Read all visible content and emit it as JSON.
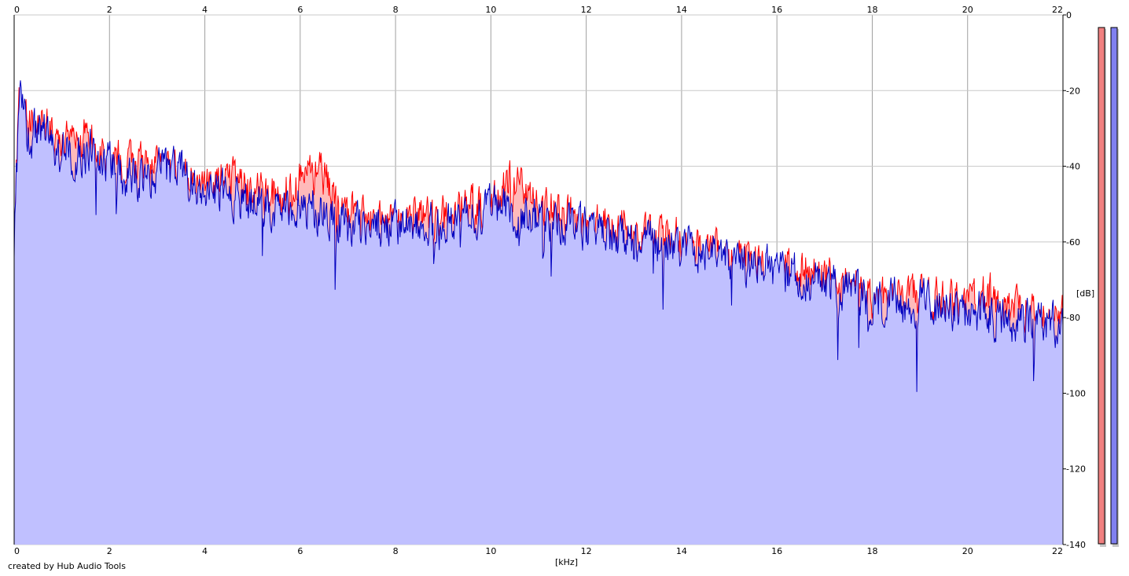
{
  "chart_data": {
    "type": "area",
    "xlabel": "[kHz]",
    "ylabel": "[dB]",
    "xlim": [
      0,
      22
    ],
    "ylim": [
      -140,
      0
    ],
    "x_ticks": [
      "0",
      "2",
      "4",
      "6",
      "8",
      "10",
      "12",
      "14",
      "16",
      "18",
      "20",
      "22"
    ],
    "y_ticks": [
      "0",
      "-20",
      "-40",
      "-60",
      "-80",
      "-100",
      "-120",
      "-140"
    ],
    "grid": true,
    "series": [
      {
        "color": "#ff0000",
        "fill": "#ffbaba",
        "anchors": [
          [
            0,
            -62
          ],
          [
            0.05,
            -38
          ],
          [
            0.1,
            -22
          ],
          [
            0.3,
            -30
          ],
          [
            0.6,
            -28
          ],
          [
            1.0,
            -34
          ],
          [
            1.3,
            -34
          ],
          [
            1.6,
            -32
          ],
          [
            2.0,
            -38
          ],
          [
            2.5,
            -40
          ],
          [
            3.0,
            -40
          ],
          [
            3.5,
            -42
          ],
          [
            4.0,
            -46
          ],
          [
            4.5,
            -44
          ],
          [
            5.0,
            -47
          ],
          [
            5.5,
            -48
          ],
          [
            6.0,
            -44
          ],
          [
            6.5,
            -42
          ],
          [
            7.0,
            -52
          ],
          [
            7.5,
            -56
          ],
          [
            8.0,
            -55
          ],
          [
            9.0,
            -54
          ],
          [
            10.0,
            -50
          ],
          [
            10.4,
            -44
          ],
          [
            11.0,
            -51
          ],
          [
            12.0,
            -54
          ],
          [
            12.5,
            -56
          ],
          [
            13.0,
            -58
          ],
          [
            14.0,
            -60
          ],
          [
            15.0,
            -64
          ],
          [
            16.0,
            -67
          ],
          [
            17.0,
            -68
          ],
          [
            18.0,
            -74
          ],
          [
            19.0,
            -75
          ],
          [
            20.0,
            -77
          ],
          [
            20.5,
            -74
          ],
          [
            21.0,
            -79
          ],
          [
            22.0,
            -80
          ]
        ]
      },
      {
        "color": "#0000c0",
        "fill": "#c0c0ff",
        "anchors": [
          [
            0,
            -60
          ],
          [
            0.05,
            -40
          ],
          [
            0.1,
            -21
          ],
          [
            0.3,
            -32
          ],
          [
            0.6,
            -31
          ],
          [
            1.0,
            -36
          ],
          [
            1.3,
            -37
          ],
          [
            1.6,
            -35
          ],
          [
            2.0,
            -40
          ],
          [
            2.5,
            -43
          ],
          [
            3.0,
            -42
          ],
          [
            3.5,
            -41
          ],
          [
            4.0,
            -48
          ],
          [
            4.5,
            -47
          ],
          [
            5.0,
            -49
          ],
          [
            5.5,
            -50
          ],
          [
            6.0,
            -50
          ],
          [
            6.5,
            -52
          ],
          [
            7.0,
            -56
          ],
          [
            7.5,
            -57
          ],
          [
            8.0,
            -55
          ],
          [
            9.0,
            -55
          ],
          [
            10.0,
            -51
          ],
          [
            10.4,
            -52
          ],
          [
            11.0,
            -54
          ],
          [
            12.0,
            -57
          ],
          [
            12.5,
            -58
          ],
          [
            13.0,
            -60
          ],
          [
            14.0,
            -61
          ],
          [
            15.0,
            -64
          ],
          [
            16.0,
            -68
          ],
          [
            17.0,
            -70
          ],
          [
            18.0,
            -76
          ],
          [
            19.0,
            -76
          ],
          [
            20.0,
            -78
          ],
          [
            20.5,
            -79
          ],
          [
            21.0,
            -81
          ],
          [
            22.0,
            -82
          ]
        ]
      }
    ]
  },
  "footer": {
    "credit": "created by Hub Audio Tools"
  }
}
